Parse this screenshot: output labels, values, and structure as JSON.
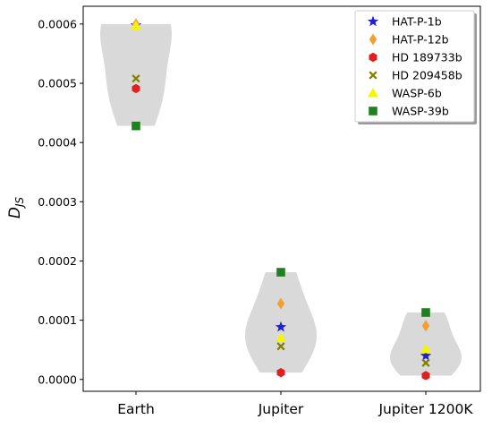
{
  "chart_data": {
    "type": "violin",
    "title": "",
    "xlabel": "",
    "ylabel_main": "D",
    "ylabel_sub": "JS",
    "categories": [
      "Earth",
      "Jupiter",
      "Jupiter 1200K"
    ],
    "ylim": [
      -2e-05,
      0.00063
    ],
    "yticks": [
      0.0,
      0.0001,
      0.0002,
      0.0003,
      0.0004,
      0.0005,
      0.0006
    ],
    "ytick_labels": [
      "0.0000",
      "0.0001",
      "0.0002",
      "0.0003",
      "0.0004",
      "0.0005",
      "0.0006"
    ],
    "grid": false,
    "legend_position": "top-right",
    "violin_color": "#d9d9d9",
    "series": [
      {
        "name": "HAT-P-1b",
        "marker": "star",
        "color": "#1f1fd6",
        "values": [
          0.000598,
          8.85e-05,
          4e-05
        ]
      },
      {
        "name": "HAT-P-12b",
        "marker": "diamond",
        "color": "#f0a030",
        "values": [
          0.0006,
          0.000128,
          9.05e-05
        ]
      },
      {
        "name": "HD 189733b",
        "marker": "hexagon",
        "color": "#e02020",
        "values": [
          0.000491,
          1.15e-05,
          6.5e-06
        ]
      },
      {
        "name": "HD 209458b",
        "marker": "x",
        "color": "#808000",
        "values": [
          0.000508,
          5.6e-05,
          2.8e-05
        ]
      },
      {
        "name": "WASP-6b",
        "marker": "triangle",
        "color": "#f5f500",
        "values": [
          0.000597,
          7e-05,
          5.1e-05
        ]
      },
      {
        "name": "WASP-39b",
        "marker": "square",
        "color": "#208020",
        "values": [
          0.000428,
          0.000181,
          0.000113
        ]
      }
    ]
  }
}
